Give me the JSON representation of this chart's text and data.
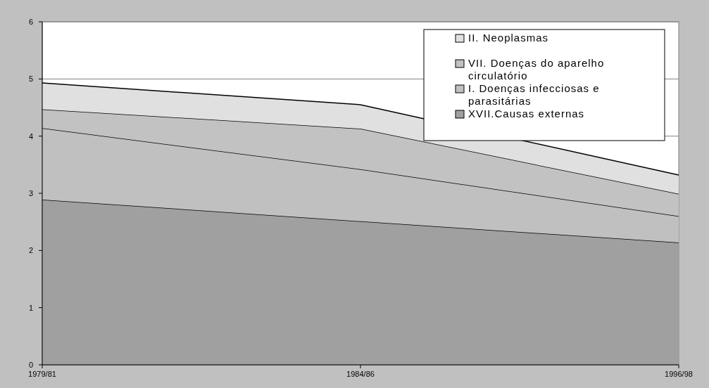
{
  "chart_data": {
    "type": "area",
    "stacked": true,
    "categories": [
      "1979/81",
      "1984/86",
      "1996/98"
    ],
    "series": [
      {
        "name": "XVII.Causas externas",
        "color": "#a0a0a0",
        "values": [
          2.89,
          2.51,
          2.14
        ]
      },
      {
        "name": "I. Doenças infecciosas e parasitárias",
        "color": "#c0c0c0",
        "values": [
          1.25,
          0.91,
          0.46
        ]
      },
      {
        "name": "VII. Doenças do aparelho circulatório",
        "color": "#c2c2c2",
        "values": [
          0.33,
          0.71,
          0.39
        ]
      },
      {
        "name": "II. Neoplasmas",
        "color": "#e0e0e0",
        "values": [
          0.46,
          0.42,
          0.33
        ]
      }
    ],
    "ylim": [
      0,
      6
    ],
    "yticks": [
      0,
      1,
      2,
      3,
      4,
      5,
      6
    ],
    "grid": "y",
    "legend": "top right"
  }
}
